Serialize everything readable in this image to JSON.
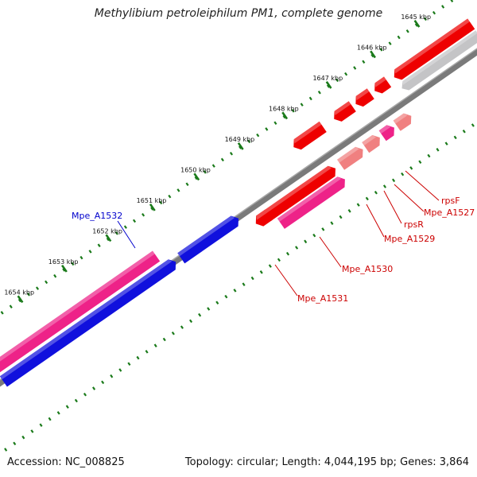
{
  "title": "Methylibium petroleiphilum PM1, complete genome",
  "footer": {
    "accession": "Accession: NC_008825",
    "summary": "Topology: circular; Length: 4,044,195 bp; Genes: 3,864"
  },
  "colors": {
    "backbone": "#7a7a7a",
    "tick": "#1a7a1a",
    "gene_red": "#ee0000",
    "gene_pink": "#ee2288",
    "gene_salmon": "#f08080",
    "gene_blue": "#1010dd",
    "gene_grey": "#c4c4c6",
    "label_red": "#cc0000",
    "label_blue": "#0000cc"
  },
  "ticks": [
    {
      "label": "1645 kbp"
    },
    {
      "label": "1646 kbp"
    },
    {
      "label": "1647 kbp"
    },
    {
      "label": "1648 kbp"
    },
    {
      "label": "1649 kbp"
    },
    {
      "label": "1650 kbp"
    },
    {
      "label": "1651 kbp"
    },
    {
      "label": "1652 kbp"
    },
    {
      "label": "1653 kbp"
    },
    {
      "label": "1654 kbp"
    }
  ],
  "gene_labels": [
    {
      "text": "rpsF",
      "color": "label_red"
    },
    {
      "text": "Mpe_A1527",
      "color": "label_red"
    },
    {
      "text": "rpsR",
      "color": "label_red"
    },
    {
      "text": "Mpe_A1529",
      "color": "label_red"
    },
    {
      "text": "Mpe_A1530",
      "color": "label_red"
    },
    {
      "text": "Mpe_A1531",
      "color": "label_red"
    },
    {
      "text": "Mpe_A1532",
      "color": "label_blue"
    }
  ]
}
